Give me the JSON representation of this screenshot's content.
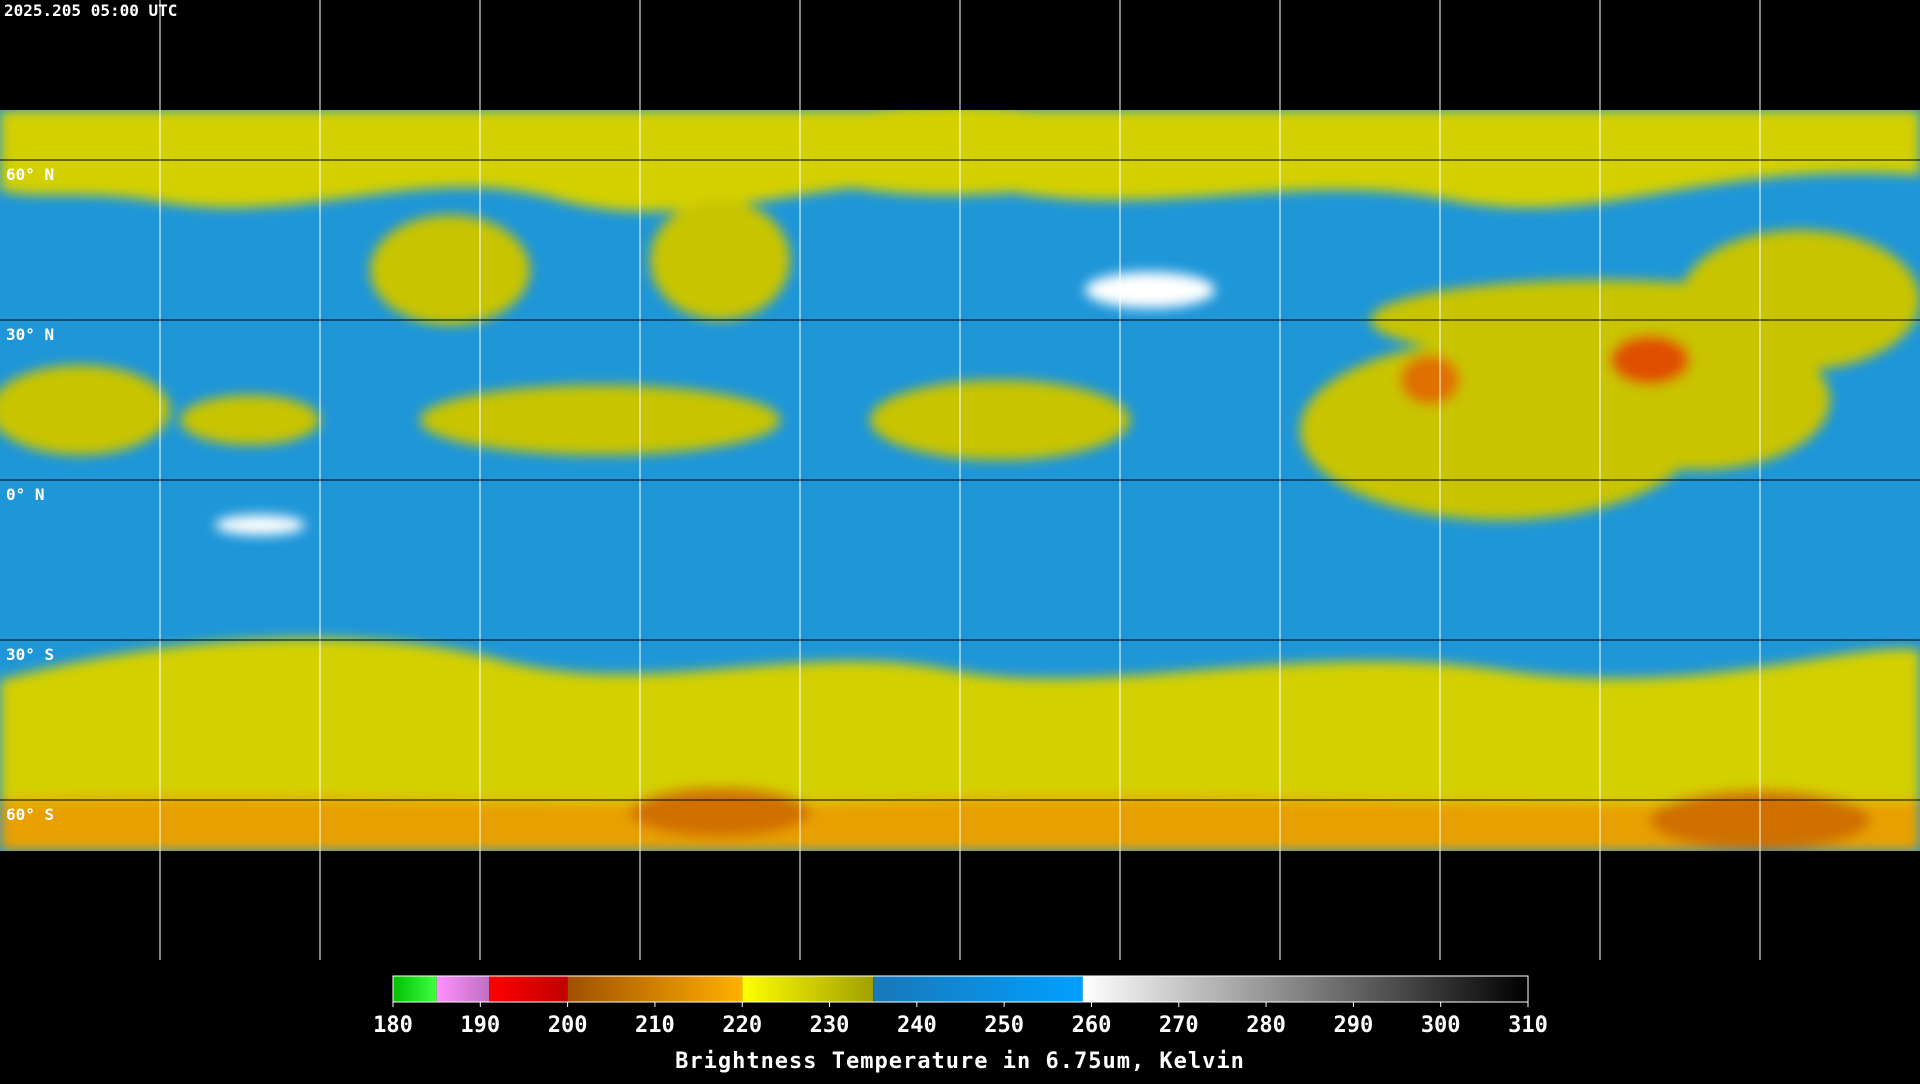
{
  "timestamp": "2025.205 05:00 UTC",
  "latitude_labels": [
    "60° N",
    "30° N",
    "0° N",
    "30° S",
    "60° S"
  ],
  "colorbar": {
    "title": "Brightness Temperature in 6.75um, Kelvin",
    "lim": [
      180,
      310
    ],
    "ticks": [
      180,
      190,
      200,
      210,
      220,
      230,
      240,
      250,
      260,
      270,
      280,
      290,
      300,
      310
    ],
    "segments": [
      {
        "from": 180,
        "to": 185,
        "colors": [
          "#00c000",
          "#40ff40"
        ]
      },
      {
        "from": 185,
        "to": 191,
        "colors": [
          "#ff90ff",
          "#c070c0"
        ]
      },
      {
        "from": 191,
        "to": 200,
        "colors": [
          "#ff0000",
          "#c00000"
        ]
      },
      {
        "from": 200,
        "to": 220,
        "colors": [
          "#a05000",
          "#ffb000"
        ]
      },
      {
        "from": 220,
        "to": 235,
        "colors": [
          "#ffff00",
          "#a0a000"
        ]
      },
      {
        "from": 235,
        "to": 259,
        "colors": [
          "#1878b8",
          "#00a0ff"
        ]
      },
      {
        "from": 259,
        "to": 310,
        "colors": [
          "#ffffff",
          "#000000"
        ]
      }
    ]
  }
}
